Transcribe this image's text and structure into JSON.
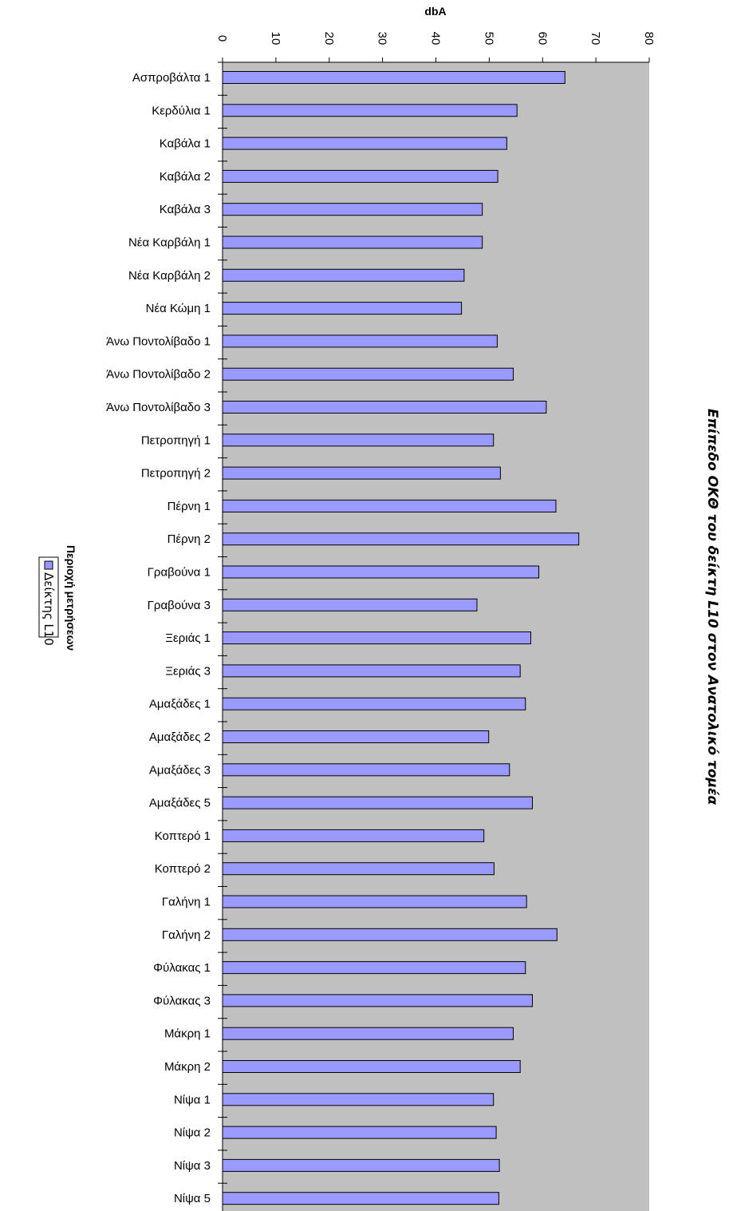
{
  "chart_data": {
    "type": "bar",
    "orientation": "horizontal",
    "title": "Επίπεδο ΟΚΘ του δείκτη L10 στον Ανατολικό τομέα",
    "xlabel": "dbA",
    "ylabel": "Περιοχή μετρήσεων",
    "xlim": [
      0,
      80
    ],
    "ticks": [
      "0",
      "10",
      "20",
      "30",
      "40",
      "50",
      "60",
      "70",
      "80"
    ],
    "categories": [
      "Ασπροβάλτα 1",
      "Κερδύλια 1",
      "Καβάλα 1",
      "Καβάλα 2",
      "Καβάλα 3",
      "Νέα Καρβάλη 1",
      "Νέα Καρβάλη 2",
      "Νέα Κώμη 1",
      "Άνω Ποντολίβαδο 1",
      "Άνω Ποντολίβαδο 2",
      "Άνω Ποντολίβαδο 3",
      "Πετροπηγή 1",
      "Πετροπηγή 2",
      "Πέρνη 1",
      "Πέρνη 2",
      "Γραβούνα 1",
      "Γραβούνα 3",
      "Ξεριάς 1",
      "Ξεριάς 3",
      "Αμαξάδες 1",
      "Αμαξάδες 2",
      "Αμαξάδες 3",
      "Αμαξάδες 5",
      "Κοπτερό 1",
      "Κοπτερό 2",
      "Γαλήνη 1",
      "Γαλήνη 2",
      "Φύλακας 1",
      "Φύλακας 3",
      "Μάκρη 1",
      "Μάκρη 2",
      "Νίψα 1",
      "Νίψα 2",
      "Νίψα 3",
      "Νίψα 5"
    ],
    "series": [
      {
        "name": "Δείκτης L10",
        "color": "#9999FF",
        "values": [
          64.2,
          55.2,
          53.3,
          51.6,
          48.7,
          48.7,
          45.3,
          44.8,
          51.5,
          54.5,
          60.7,
          50.8,
          52.1,
          62.5,
          66.8,
          59.3,
          47.7,
          57.8,
          55.8,
          56.8,
          49.9,
          53.8,
          58.1,
          49.0,
          50.9,
          57.0,
          62.7,
          56.8,
          58.1,
          54.5,
          55.8,
          50.8,
          51.3,
          51.9,
          51.8
        ]
      }
    ],
    "plot_background": "#C0C0C0",
    "grid": false,
    "legend_position": "left"
  }
}
